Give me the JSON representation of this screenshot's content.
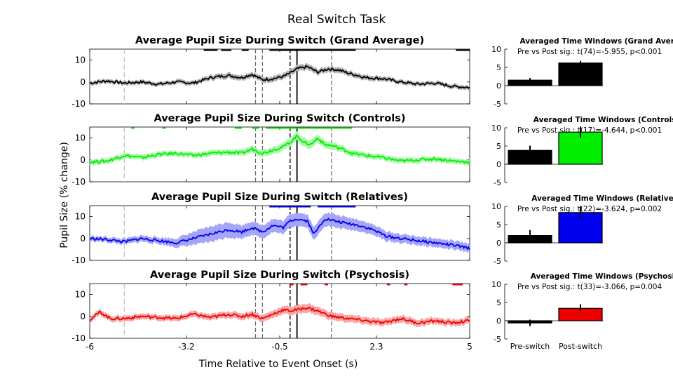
{
  "figure": {
    "suptitle": "Real Switch Task",
    "ylabel": "Pupil Size (% change)",
    "xlabel": "Time Relative to Event Onset (s)"
  },
  "colors": {
    "grand": "#000000",
    "controls": "#00ee00",
    "relatives": "#0000ee",
    "psychosis": "#ee0000"
  },
  "chart_data": [
    {
      "type": "line",
      "id": "grand",
      "title": "Average Pupil Size During Switch (Grand Average)",
      "xlim": [
        -6,
        5
      ],
      "ylim": [
        -10,
        15
      ],
      "xticks": [
        -6,
        -3.2,
        -0.5,
        2.3,
        5
      ],
      "xticklabels": [
        "-6",
        "-3.2",
        "-0.5",
        "2.3",
        "5"
      ],
      "yticks": [
        -10,
        0,
        10
      ],
      "yticklabels": [
        "-10",
        "0",
        "10"
      ],
      "series": [
        {
          "color": "#000000",
          "x": [
            -6,
            -5.5,
            -5,
            -4.5,
            -4,
            -3.5,
            -3,
            -2.5,
            -2,
            -1.6,
            -1.3,
            -1,
            -0.7,
            -0.4,
            -0.2,
            0,
            0.3,
            0.6,
            0.9,
            1.2,
            1.5,
            2,
            2.5,
            3,
            3.5,
            4,
            4.5,
            5
          ],
          "y": [
            -0.5,
            0.5,
            -0.5,
            0,
            -1,
            0,
            -0.5,
            2,
            3,
            2,
            3.5,
            1,
            1.5,
            2.5,
            4,
            6,
            7,
            4.5,
            6,
            5.5,
            4,
            2,
            1.5,
            0,
            -1,
            -0.5,
            -2,
            -2.5
          ],
          "band": [
            1,
            1,
            1,
            1,
            1,
            1,
            1,
            1.2,
            1.3,
            1.2,
            1.3,
            1.3,
            1.3,
            1.3,
            1.4,
            1.4,
            1.4,
            1.3,
            1.3,
            1.3,
            1.2,
            1.2,
            1.1,
            1,
            1,
            1,
            1,
            1
          ]
        }
      ],
      "vlines": [
        {
          "x": -5,
          "style": "light"
        },
        {
          "x": -1.2,
          "style": "dash"
        },
        {
          "x": -1,
          "style": "dash"
        },
        {
          "x": -0.2,
          "style": "dark"
        },
        {
          "x": 0,
          "style": "solid"
        },
        {
          "x": 1,
          "style": "dash"
        }
      ],
      "sig_segments": [
        [
          -2.7,
          -2.3
        ],
        [
          -2.2,
          -1.9
        ],
        [
          -1.6,
          -1.4
        ],
        [
          -0.8,
          1.7
        ],
        [
          4.6,
          5
        ]
      ],
      "sig_y": 14.5,
      "inset": {
        "title": "Averaged Time Windows (Grand Average)",
        "stat": "Pre vs Post sig.: t(74)=-5.955, p<0.001",
        "ylim": [
          -5,
          10
        ],
        "yticks": [
          -5,
          0,
          5,
          10
        ],
        "yticklabels": [
          "-5",
          "0",
          "5",
          "10"
        ],
        "categories": [
          "Pre-switch",
          "Post-switch"
        ],
        "values": [
          1.5,
          6.2
        ],
        "errors": [
          0.6,
          0.6
        ]
      }
    },
    {
      "type": "line",
      "id": "controls",
      "title": "Average Pupil Size During Switch (Controls)",
      "xlim": [
        -6,
        5
      ],
      "ylim": [
        -10,
        15
      ],
      "xticks": [
        -6,
        -3.2,
        -0.5,
        2.3,
        5
      ],
      "xticklabels": [
        "-6",
        "-3.2",
        "-0.5",
        "2.3",
        "5"
      ],
      "yticks": [
        -10,
        0,
        10
      ],
      "yticklabels": [
        "-10",
        "0",
        "10"
      ],
      "series": [
        {
          "color": "#00ee00",
          "x": [
            -6,
            -5.5,
            -5,
            -4.5,
            -4,
            -3.5,
            -3,
            -2.5,
            -2,
            -1.6,
            -1.3,
            -1,
            -0.7,
            -0.4,
            -0.2,
            0,
            0.2,
            0.4,
            0.6,
            0.8,
            1,
            1.3,
            1.6,
            2,
            2.5,
            3,
            3.5,
            4,
            4.5,
            5
          ],
          "y": [
            -1,
            -0.5,
            2,
            1,
            2.5,
            3,
            2,
            3,
            3.5,
            3,
            5,
            3,
            4.5,
            6,
            8,
            11,
            8,
            7,
            10,
            7,
            6.5,
            5,
            3,
            2,
            1,
            -0.5,
            0,
            0.5,
            -0.5,
            -1
          ],
          "band": [
            1.2,
            1.2,
            1.2,
            1.2,
            1.2,
            1.2,
            1.2,
            1.3,
            1.3,
            1.4,
            1.5,
            1.5,
            1.6,
            1.7,
            1.8,
            2,
            2,
            1.9,
            1.8,
            1.7,
            1.6,
            1.5,
            1.4,
            1.3,
            1.3,
            1.2,
            1.2,
            1.2,
            1.2,
            1.2
          ]
        }
      ],
      "vlines": [
        {
          "x": -5,
          "style": "light"
        },
        {
          "x": -1.2,
          "style": "dash"
        },
        {
          "x": -1,
          "style": "dash"
        },
        {
          "x": -0.2,
          "style": "dark"
        },
        {
          "x": 0,
          "style": "solid"
        },
        {
          "x": 1,
          "style": "dash"
        }
      ],
      "sig_segments": [
        [
          -4.8,
          -4.7
        ],
        [
          -3.9,
          -3.8
        ],
        [
          -1.8,
          -1.6
        ],
        [
          -1.3,
          -1.1
        ],
        [
          -0.9,
          1.6
        ]
      ],
      "sig_y": 14.5,
      "inset": {
        "title": "Averaged Time Windows (Controls)",
        "stat": "Pre vs Post sig.: t(17)=-4.644, p<0.001",
        "ylim": [
          -5,
          10
        ],
        "yticks": [
          -5,
          0,
          5,
          10
        ],
        "yticklabels": [
          "-5",
          "0",
          "5",
          "10"
        ],
        "categories": [
          "Pre-switch",
          "Post-switch"
        ],
        "values": [
          3.8,
          8.8
        ],
        "errors": [
          1.3,
          1.5
        ]
      }
    },
    {
      "type": "line",
      "id": "relatives",
      "title": "Average Pupil Size During Switch (Relatives)",
      "xlim": [
        -6,
        5
      ],
      "ylim": [
        -10,
        15
      ],
      "xticks": [
        -6,
        -3.2,
        -0.5,
        2.3,
        5
      ],
      "xticklabels": [
        "-6",
        "-3.2",
        "-0.5",
        "2.3",
        "5"
      ],
      "yticks": [
        -10,
        0,
        10
      ],
      "yticklabels": [
        "-10",
        "0",
        "10"
      ],
      "series": [
        {
          "color": "#0000ee",
          "x": [
            -6,
            -5.5,
            -5,
            -4.5,
            -4,
            -3.5,
            -3,
            -2.5,
            -2,
            -1.6,
            -1.3,
            -1,
            -0.7,
            -0.4,
            -0.2,
            0,
            0.3,
            0.5,
            0.8,
            1.1,
            1.4,
            1.8,
            2.2,
            2.6,
            3,
            3.5,
            4,
            4.5,
            5
          ],
          "y": [
            0,
            -0.5,
            -1.5,
            0,
            -1,
            -2,
            0,
            2,
            4,
            3,
            5,
            3,
            6,
            5,
            8,
            9,
            8,
            2,
            9,
            8,
            7,
            6,
            4,
            1,
            0,
            -1,
            -2,
            -3,
            -4.5
          ],
          "band": [
            1.2,
            1.2,
            1.3,
            1.4,
            1.5,
            2,
            3,
            3.5,
            3.5,
            3,
            3,
            3,
            3,
            3,
            3,
            3,
            3,
            3,
            3,
            3,
            2.8,
            2.6,
            2.4,
            2.2,
            2,
            2,
            2,
            2,
            2
          ]
        }
      ],
      "vlines": [
        {
          "x": -5,
          "style": "light"
        },
        {
          "x": -1.2,
          "style": "dash"
        },
        {
          "x": -1,
          "style": "dash"
        },
        {
          "x": -0.2,
          "style": "dark"
        },
        {
          "x": 0,
          "style": "solid"
        },
        {
          "x": 1,
          "style": "dash"
        }
      ],
      "sig_segments": [
        [
          -0.8,
          0.4
        ],
        [
          0.6,
          1.7
        ]
      ],
      "sig_y": 14.5,
      "inset": {
        "title": "Averaged Time Windows (Relatives)",
        "stat": "Pre vs Post sig.: t(22)=-3.624, p=0.002",
        "ylim": [
          -5,
          10
        ],
        "yticks": [
          -5,
          0,
          5,
          10
        ],
        "yticklabels": [
          "-5",
          "0",
          "5",
          "10"
        ],
        "categories": [
          "Pre-switch",
          "Post-switch"
        ],
        "values": [
          2.0,
          8.3
        ],
        "errors": [
          1.5,
          1.7
        ]
      }
    },
    {
      "type": "line",
      "id": "psychosis",
      "title": "Average Pupil Size During Switch (Psychosis)",
      "xlim": [
        -6,
        5
      ],
      "ylim": [
        -10,
        15
      ],
      "xticks": [
        -6,
        -3.2,
        -0.5,
        2.3,
        5
      ],
      "xticklabels": [
        "-6",
        "-3.2",
        "-0.5",
        "2.3",
        "5"
      ],
      "yticks": [
        -10,
        0,
        10
      ],
      "yticklabels": [
        "-10",
        "0",
        "10"
      ],
      "series": [
        {
          "color": "#ee0000",
          "x": [
            -6,
            -5.7,
            -5.4,
            -5,
            -4.5,
            -4,
            -3.5,
            -3,
            -2.5,
            -2,
            -1.6,
            -1.3,
            -1,
            -0.7,
            -0.4,
            -0.2,
            0,
            0.3,
            0.6,
            1,
            1.5,
            2,
            2.5,
            3,
            3.5,
            4,
            4.5,
            5
          ],
          "y": [
            -1.5,
            2,
            -1,
            -1,
            0,
            -0.5,
            -1,
            1,
            -0.5,
            1,
            0,
            1,
            -1,
            1,
            3,
            2.5,
            3,
            4,
            2.5,
            0,
            -1,
            -2,
            -3,
            -1,
            -3,
            -2,
            -3,
            -2
          ],
          "band": [
            1.3,
            1.3,
            1.3,
            1.3,
            1.3,
            1.3,
            1.3,
            1.4,
            1.4,
            1.5,
            1.5,
            1.6,
            1.6,
            1.7,
            1.8,
            1.9,
            2,
            2,
            1.9,
            1.8,
            1.7,
            1.6,
            1.6,
            1.6,
            1.6,
            1.5,
            1.5,
            1.5
          ]
        }
      ],
      "vlines": [
        {
          "x": -5,
          "style": "light"
        },
        {
          "x": -1.2,
          "style": "dash"
        },
        {
          "x": -1,
          "style": "dash"
        },
        {
          "x": -0.2,
          "style": "dark"
        },
        {
          "x": 0,
          "style": "solid"
        },
        {
          "x": 1,
          "style": "dash"
        }
      ],
      "sig_segments": [
        [
          -0.2,
          -0.1
        ],
        [
          0.1,
          0.3
        ],
        [
          0.8,
          0.9
        ],
        [
          2.6,
          2.7
        ],
        [
          3.1,
          3.2
        ],
        [
          4.5,
          4.8
        ]
      ],
      "sig_y": 14.5,
      "inset": {
        "title": "Averaged Time Windows (Psychosis)",
        "stat": "Pre vs Post sig.: t(33)=-3.066, p=0.004",
        "ylim": [
          -5,
          10
        ],
        "yticks": [
          -5,
          0,
          5,
          10
        ],
        "yticklabels": [
          "-5",
          "0",
          "5",
          "10"
        ],
        "categories": [
          "Pre-switch",
          "Post-switch"
        ],
        "values": [
          -0.6,
          3.4
        ],
        "errors": [
          0.9,
          1.1
        ]
      }
    }
  ]
}
